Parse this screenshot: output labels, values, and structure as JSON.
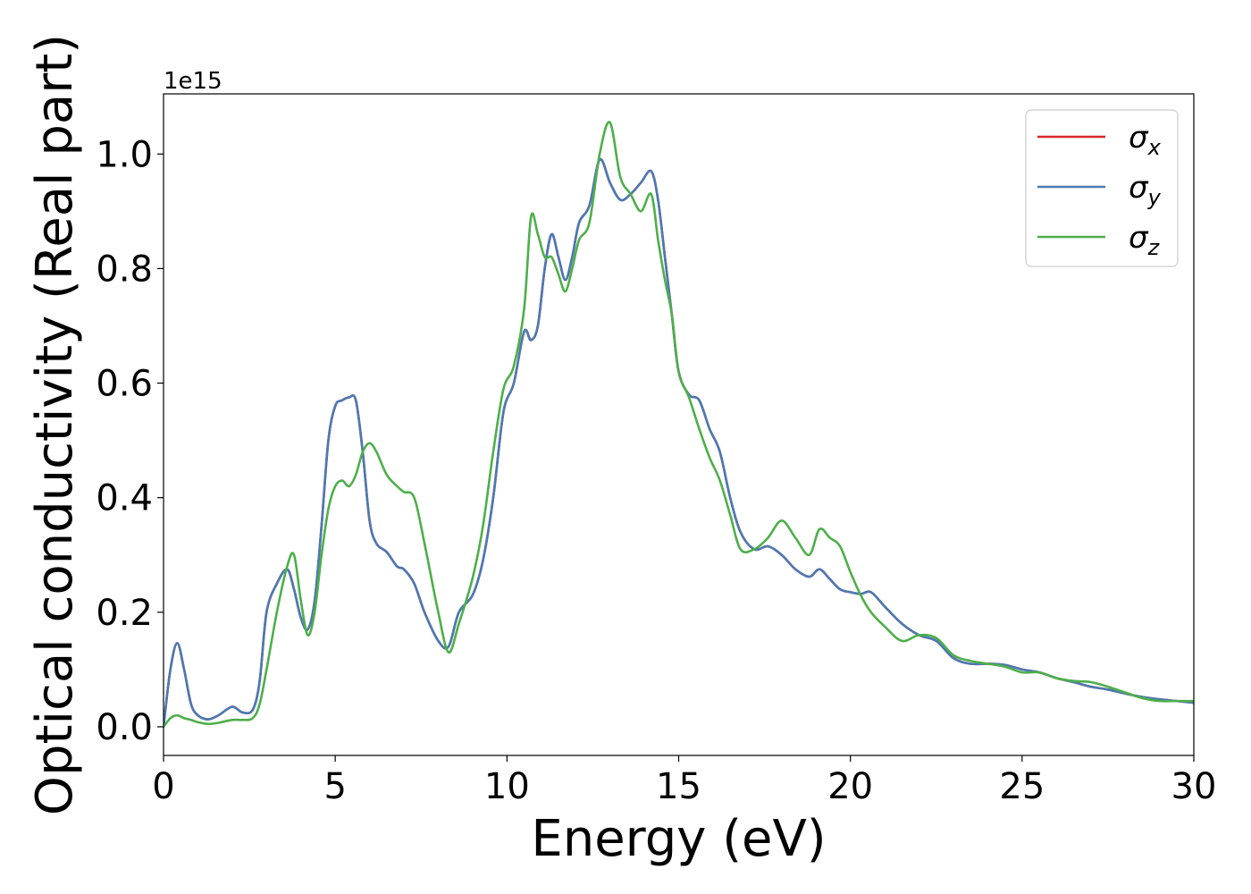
{
  "chart_data": {
    "type": "line",
    "xlabel": "Energy (eV)",
    "ylabel": "Optical conductivity (Real part)",
    "y_offset_text": "1e15",
    "xlim": [
      0,
      30
    ],
    "ylim": [
      -0.05,
      1.105
    ],
    "xticks": [
      0,
      5,
      10,
      15,
      20,
      25,
      30
    ],
    "xtick_labels": [
      "0",
      "5",
      "10",
      "15",
      "20",
      "25",
      "30"
    ],
    "yticks": [
      0.0,
      0.2,
      0.4,
      0.6,
      0.8,
      1.0
    ],
    "ytick_labels": [
      "0.0",
      "0.2",
      "0.4",
      "0.6",
      "0.8",
      "1.0"
    ],
    "grid": false,
    "legend_position": "top-right",
    "series": [
      {
        "name": "σx",
        "legend_base": "σ",
        "legend_sub": "x",
        "color": "#d62728",
        "x": [
          0,
          0.2,
          0.4,
          0.6,
          0.8,
          1.0,
          1.3,
          1.6,
          2.0,
          2.3,
          2.6,
          2.8,
          3.0,
          3.3,
          3.6,
          3.8,
          4.0,
          4.2,
          4.4,
          4.6,
          4.8,
          5.0,
          5.2,
          5.4,
          5.6,
          5.8,
          6.0,
          6.2,
          6.5,
          6.8,
          7.0,
          7.3,
          7.6,
          8.0,
          8.3,
          8.6,
          9.0,
          9.3,
          9.6,
          9.9,
          10.2,
          10.5,
          10.7,
          10.9,
          11.1,
          11.3,
          11.5,
          11.7,
          11.9,
          12.1,
          12.4,
          12.7,
          13.0,
          13.3,
          13.6,
          13.9,
          14.2,
          14.4,
          14.6,
          14.8,
          15.0,
          15.3,
          15.6,
          15.9,
          16.2,
          16.5,
          16.8,
          17.2,
          17.6,
          18.0,
          18.4,
          18.8,
          19.1,
          19.4,
          19.7,
          20.0,
          20.3,
          20.6,
          21.0,
          21.5,
          22.0,
          22.5,
          23.0,
          23.5,
          24.0,
          24.5,
          25.0,
          25.5,
          26.0,
          26.5,
          27.0,
          27.5,
          28.0,
          28.5,
          29.0,
          29.5,
          30.0
        ],
        "y": [
          0.0,
          0.1,
          0.146,
          0.1,
          0.04,
          0.02,
          0.013,
          0.02,
          0.035,
          0.025,
          0.03,
          0.08,
          0.2,
          0.25,
          0.275,
          0.24,
          0.19,
          0.17,
          0.22,
          0.35,
          0.5,
          0.56,
          0.57,
          0.575,
          0.57,
          0.48,
          0.36,
          0.32,
          0.305,
          0.28,
          0.275,
          0.25,
          0.2,
          0.15,
          0.14,
          0.2,
          0.23,
          0.29,
          0.4,
          0.55,
          0.6,
          0.69,
          0.675,
          0.7,
          0.8,
          0.86,
          0.82,
          0.78,
          0.82,
          0.88,
          0.91,
          0.99,
          0.95,
          0.92,
          0.93,
          0.95,
          0.97,
          0.92,
          0.82,
          0.72,
          0.62,
          0.58,
          0.57,
          0.52,
          0.48,
          0.4,
          0.34,
          0.31,
          0.315,
          0.3,
          0.275,
          0.262,
          0.275,
          0.258,
          0.24,
          0.235,
          0.232,
          0.235,
          0.21,
          0.18,
          0.16,
          0.15,
          0.12,
          0.11,
          0.11,
          0.108,
          0.1,
          0.095,
          0.085,
          0.078,
          0.07,
          0.065,
          0.058,
          0.052,
          0.048,
          0.045,
          0.042
        ]
      },
      {
        "name": "σy",
        "legend_base": "σ",
        "legend_sub": "y",
        "color": "#4a7ab4",
        "x": [
          0,
          0.2,
          0.4,
          0.6,
          0.8,
          1.0,
          1.3,
          1.6,
          2.0,
          2.3,
          2.6,
          2.8,
          3.0,
          3.3,
          3.6,
          3.8,
          4.0,
          4.2,
          4.4,
          4.6,
          4.8,
          5.0,
          5.2,
          5.4,
          5.6,
          5.8,
          6.0,
          6.2,
          6.5,
          6.8,
          7.0,
          7.3,
          7.6,
          8.0,
          8.3,
          8.6,
          9.0,
          9.3,
          9.6,
          9.9,
          10.2,
          10.5,
          10.7,
          10.9,
          11.1,
          11.3,
          11.5,
          11.7,
          11.9,
          12.1,
          12.4,
          12.7,
          13.0,
          13.3,
          13.6,
          13.9,
          14.2,
          14.4,
          14.6,
          14.8,
          15.0,
          15.3,
          15.6,
          15.9,
          16.2,
          16.5,
          16.8,
          17.2,
          17.6,
          18.0,
          18.4,
          18.8,
          19.1,
          19.4,
          19.7,
          20.0,
          20.3,
          20.6,
          21.0,
          21.5,
          22.0,
          22.5,
          23.0,
          23.5,
          24.0,
          24.5,
          25.0,
          25.5,
          26.0,
          26.5,
          27.0,
          27.5,
          28.0,
          28.5,
          29.0,
          29.5,
          30.0
        ],
        "y": [
          0.0,
          0.1,
          0.146,
          0.1,
          0.04,
          0.02,
          0.013,
          0.02,
          0.035,
          0.025,
          0.03,
          0.08,
          0.2,
          0.25,
          0.275,
          0.24,
          0.19,
          0.17,
          0.22,
          0.35,
          0.5,
          0.56,
          0.57,
          0.575,
          0.57,
          0.48,
          0.36,
          0.32,
          0.305,
          0.28,
          0.275,
          0.25,
          0.2,
          0.15,
          0.14,
          0.2,
          0.23,
          0.29,
          0.4,
          0.55,
          0.6,
          0.69,
          0.675,
          0.7,
          0.8,
          0.86,
          0.82,
          0.78,
          0.82,
          0.88,
          0.91,
          0.99,
          0.95,
          0.92,
          0.93,
          0.95,
          0.97,
          0.92,
          0.82,
          0.72,
          0.62,
          0.58,
          0.57,
          0.52,
          0.48,
          0.4,
          0.34,
          0.31,
          0.315,
          0.3,
          0.275,
          0.262,
          0.275,
          0.258,
          0.24,
          0.235,
          0.232,
          0.235,
          0.21,
          0.18,
          0.16,
          0.15,
          0.12,
          0.11,
          0.11,
          0.108,
          0.1,
          0.095,
          0.085,
          0.078,
          0.07,
          0.065,
          0.058,
          0.052,
          0.048,
          0.045,
          0.042
        ]
      },
      {
        "name": "σz",
        "legend_base": "σ",
        "legend_sub": "z",
        "color": "#4daf4a",
        "x": [
          0,
          0.2,
          0.4,
          0.6,
          0.8,
          1.0,
          1.3,
          1.6,
          2.0,
          2.3,
          2.6,
          2.8,
          3.0,
          3.3,
          3.6,
          3.8,
          4.0,
          4.2,
          4.4,
          4.6,
          4.8,
          5.0,
          5.2,
          5.4,
          5.6,
          5.8,
          6.0,
          6.2,
          6.5,
          6.8,
          7.0,
          7.3,
          7.6,
          8.0,
          8.3,
          8.6,
          9.0,
          9.3,
          9.6,
          9.9,
          10.2,
          10.5,
          10.7,
          10.9,
          11.1,
          11.3,
          11.5,
          11.7,
          11.9,
          12.1,
          12.4,
          12.7,
          13.0,
          13.3,
          13.6,
          13.9,
          14.2,
          14.4,
          14.6,
          14.8,
          15.0,
          15.3,
          15.6,
          15.9,
          16.2,
          16.5,
          16.8,
          17.2,
          17.6,
          18.0,
          18.4,
          18.8,
          19.1,
          19.4,
          19.7,
          20.0,
          20.3,
          20.6,
          21.0,
          21.5,
          22.0,
          22.5,
          23.0,
          23.5,
          24.0,
          24.5,
          25.0,
          25.5,
          26.0,
          26.5,
          27.0,
          27.5,
          28.0,
          28.5,
          29.0,
          29.5,
          30.0
        ],
        "y": [
          0.0,
          0.015,
          0.02,
          0.015,
          0.012,
          0.008,
          0.005,
          0.007,
          0.012,
          0.012,
          0.015,
          0.04,
          0.1,
          0.2,
          0.28,
          0.3,
          0.22,
          0.16,
          0.2,
          0.3,
          0.38,
          0.42,
          0.43,
          0.42,
          0.44,
          0.48,
          0.495,
          0.48,
          0.44,
          0.42,
          0.41,
          0.4,
          0.32,
          0.2,
          0.13,
          0.18,
          0.26,
          0.35,
          0.48,
          0.59,
          0.63,
          0.73,
          0.89,
          0.86,
          0.82,
          0.82,
          0.79,
          0.76,
          0.8,
          0.85,
          0.88,
          1.0,
          1.055,
          0.96,
          0.93,
          0.9,
          0.93,
          0.85,
          0.78,
          0.72,
          0.62,
          0.575,
          0.52,
          0.47,
          0.43,
          0.37,
          0.31,
          0.31,
          0.33,
          0.36,
          0.33,
          0.3,
          0.345,
          0.33,
          0.315,
          0.27,
          0.23,
          0.2,
          0.175,
          0.15,
          0.16,
          0.155,
          0.125,
          0.115,
          0.11,
          0.105,
          0.095,
          0.095,
          0.085,
          0.08,
          0.078,
          0.07,
          0.06,
          0.05,
          0.045,
          0.045,
          0.045
        ]
      }
    ]
  }
}
